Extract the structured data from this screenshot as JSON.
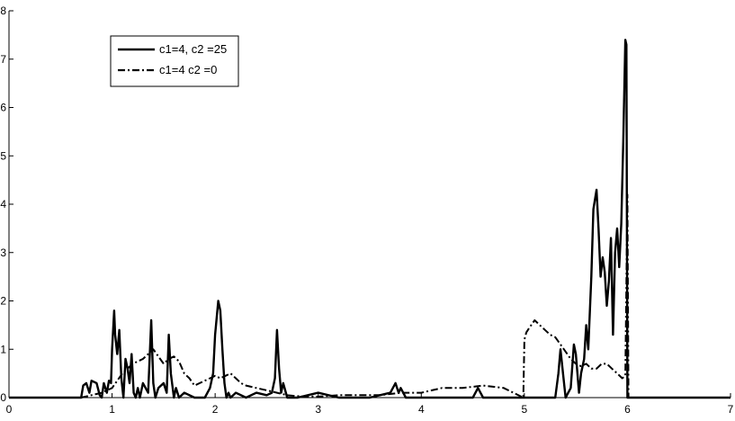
{
  "chart_data": {
    "type": "line",
    "title": "",
    "xlabel": "",
    "ylabel": "",
    "xlim": [
      0,
      7
    ],
    "ylim": [
      0,
      8
    ],
    "xticks": [
      0,
      1,
      2,
      3,
      4,
      5,
      6,
      7
    ],
    "yticks": [
      0,
      1,
      2,
      3,
      4,
      5,
      6,
      7,
      8
    ],
    "grid": false,
    "legend_position": "top-left",
    "series": [
      {
        "name": "c1=4, c2 =25",
        "style": "solid",
        "color": "#000000",
        "x": [
          0,
          0.7,
          0.72,
          0.75,
          0.78,
          0.8,
          0.85,
          0.88,
          0.9,
          0.92,
          0.95,
          0.97,
          0.99,
          1.0,
          1.02,
          1.03,
          1.05,
          1.07,
          1.09,
          1.11,
          1.13,
          1.15,
          1.17,
          1.19,
          1.21,
          1.23,
          1.25,
          1.27,
          1.3,
          1.35,
          1.38,
          1.4,
          1.42,
          1.45,
          1.5,
          1.53,
          1.55,
          1.57,
          1.6,
          1.62,
          1.65,
          1.7,
          1.8,
          1.9,
          1.95,
          1.98,
          2.0,
          2.03,
          2.05,
          2.07,
          2.09,
          2.11,
          2.13,
          2.15,
          2.2,
          2.3,
          2.4,
          2.5,
          2.55,
          2.58,
          2.6,
          2.62,
          2.64,
          2.66,
          2.7,
          2.8,
          3.0,
          3.2,
          3.5,
          3.7,
          3.75,
          3.78,
          3.8,
          3.85,
          4.0,
          4.5,
          4.55,
          4.6,
          5.0,
          5.3,
          5.33,
          5.35,
          5.38,
          5.4,
          5.45,
          5.48,
          5.5,
          5.53,
          5.55,
          5.58,
          5.6,
          5.62,
          5.65,
          5.67,
          5.7,
          5.72,
          5.74,
          5.76,
          5.78,
          5.8,
          5.82,
          5.84,
          5.86,
          5.88,
          5.9,
          5.92,
          5.94,
          5.96,
          5.98,
          5.99,
          6.0,
          6.01,
          6.02,
          6.03,
          6.05,
          7.0
        ],
        "y": [
          0,
          0,
          0.25,
          0.3,
          0.1,
          0.35,
          0.3,
          0.05,
          0,
          0.3,
          0.1,
          0.35,
          0.3,
          1.0,
          1.8,
          1.3,
          0.9,
          1.4,
          0.4,
          0,
          0.8,
          0.6,
          0.3,
          0.9,
          0.1,
          0,
          0.2,
          0,
          0.3,
          0.1,
          1.6,
          0.3,
          0,
          0.2,
          0.3,
          0.1,
          1.3,
          0.5,
          0,
          0.2,
          0,
          0.1,
          0,
          0,
          0.2,
          0.5,
          1.3,
          2.0,
          1.8,
          1.0,
          0.3,
          0,
          0.1,
          0,
          0.1,
          0,
          0.1,
          0.05,
          0.1,
          0.4,
          1.4,
          0.6,
          0.1,
          0.3,
          0,
          0,
          0.1,
          0,
          0,
          0.1,
          0.3,
          0.1,
          0.2,
          0,
          0,
          0,
          0.2,
          0,
          0,
          0,
          0.5,
          1.0,
          0.4,
          0,
          0.2,
          1.1,
          0.9,
          0.1,
          0.5,
          0.8,
          1.5,
          1.0,
          2.5,
          3.9,
          4.3,
          3.5,
          2.5,
          2.9,
          2.6,
          1.9,
          2.4,
          3.3,
          1.3,
          3.0,
          3.5,
          2.7,
          3.6,
          5.3,
          7.4,
          7.3,
          0,
          0,
          0,
          0,
          0,
          0
        ],
        "approx_peak": {
          "x": 6.0,
          "y": 7.5
        }
      },
      {
        "name": "c1=4 c2 =0",
        "style": "dashdot",
        "color": "#000000",
        "x": [
          0,
          0.7,
          0.8,
          0.9,
          1.0,
          1.05,
          1.1,
          1.15,
          1.2,
          1.25,
          1.3,
          1.35,
          1.4,
          1.45,
          1.5,
          1.55,
          1.6,
          1.65,
          1.7,
          1.75,
          1.8,
          1.85,
          1.9,
          1.95,
          2.0,
          2.05,
          2.1,
          2.15,
          2.2,
          2.25,
          2.3,
          2.4,
          2.5,
          2.6,
          2.7,
          2.8,
          3.0,
          3.2,
          3.4,
          3.6,
          3.8,
          4.0,
          4.2,
          4.4,
          4.6,
          4.8,
          4.99,
          5.0,
          5.02,
          5.05,
          5.1,
          5.15,
          5.2,
          5.25,
          5.3,
          5.35,
          5.4,
          5.45,
          5.5,
          5.55,
          5.6,
          5.65,
          5.7,
          5.75,
          5.8,
          5.85,
          5.9,
          5.95,
          5.98,
          6.0,
          6.01,
          6.05,
          7.0
        ],
        "y": [
          0,
          0,
          0.05,
          0.1,
          0.2,
          0.35,
          0.5,
          0.6,
          0.7,
          0.75,
          0.8,
          0.9,
          1.0,
          0.85,
          0.7,
          0.8,
          0.85,
          0.75,
          0.5,
          0.4,
          0.25,
          0.3,
          0.35,
          0.4,
          0.45,
          0.4,
          0.45,
          0.5,
          0.4,
          0.3,
          0.25,
          0.2,
          0.15,
          0.1,
          0.05,
          0.03,
          0.02,
          0.05,
          0.05,
          0.05,
          0.1,
          0.1,
          0.2,
          0.2,
          0.25,
          0.2,
          0,
          1.2,
          1.35,
          1.45,
          1.6,
          1.5,
          1.4,
          1.3,
          1.25,
          1.1,
          0.95,
          0.8,
          0.7,
          0.65,
          0.7,
          0.6,
          0.6,
          0.7,
          0.7,
          0.6,
          0.5,
          0.4,
          0.45,
          4.2,
          0,
          0,
          0
        ],
        "approx_peak": {
          "x": 6.0,
          "y": 4.2
        }
      }
    ]
  }
}
